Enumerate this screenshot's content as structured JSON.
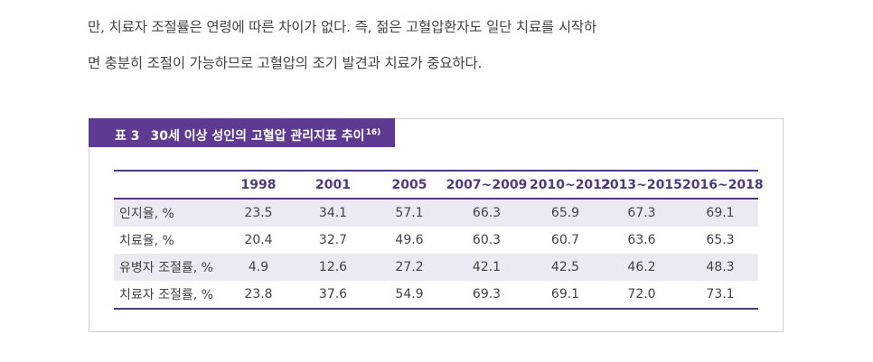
{
  "paragraph": {
    "line1": "만, 치료자 조절률은 연령에 따른 차이가 없다. 즉, 젊은 고혈압환자도 일단 치료를 시작하",
    "line2": "면 충분히 조절이 가능하므로 고혈압의 조기 발견과 치료가 중요하다."
  },
  "table": {
    "caption_number": "표 3",
    "caption_title": "30세 이상 성인의 고혈압 관리지표 추이",
    "caption_ref": "16)",
    "headers": [
      "",
      "1998",
      "2001",
      "2005",
      "2007~2009",
      "2010~2012",
      "2013~2015",
      "2016~2018"
    ],
    "rows": [
      {
        "label": "인지율, %",
        "values": [
          "23.5",
          "34.1",
          "57.1",
          "66.3",
          "65.9",
          "67.3",
          "69.1"
        ]
      },
      {
        "label": "치료율, %",
        "values": [
          "20.4",
          "32.7",
          "49.6",
          "60.3",
          "60.7",
          "63.6",
          "65.3"
        ]
      },
      {
        "label": "유병자 조절률, %",
        "values": [
          "4.9",
          "12.6",
          "27.2",
          "42.1",
          "42.5",
          "46.2",
          "48.3"
        ]
      },
      {
        "label": "치료자 조절률, %",
        "values": [
          "23.8",
          "37.6",
          "54.9",
          "69.3",
          "69.1",
          "72.0",
          "73.1"
        ]
      }
    ]
  }
}
